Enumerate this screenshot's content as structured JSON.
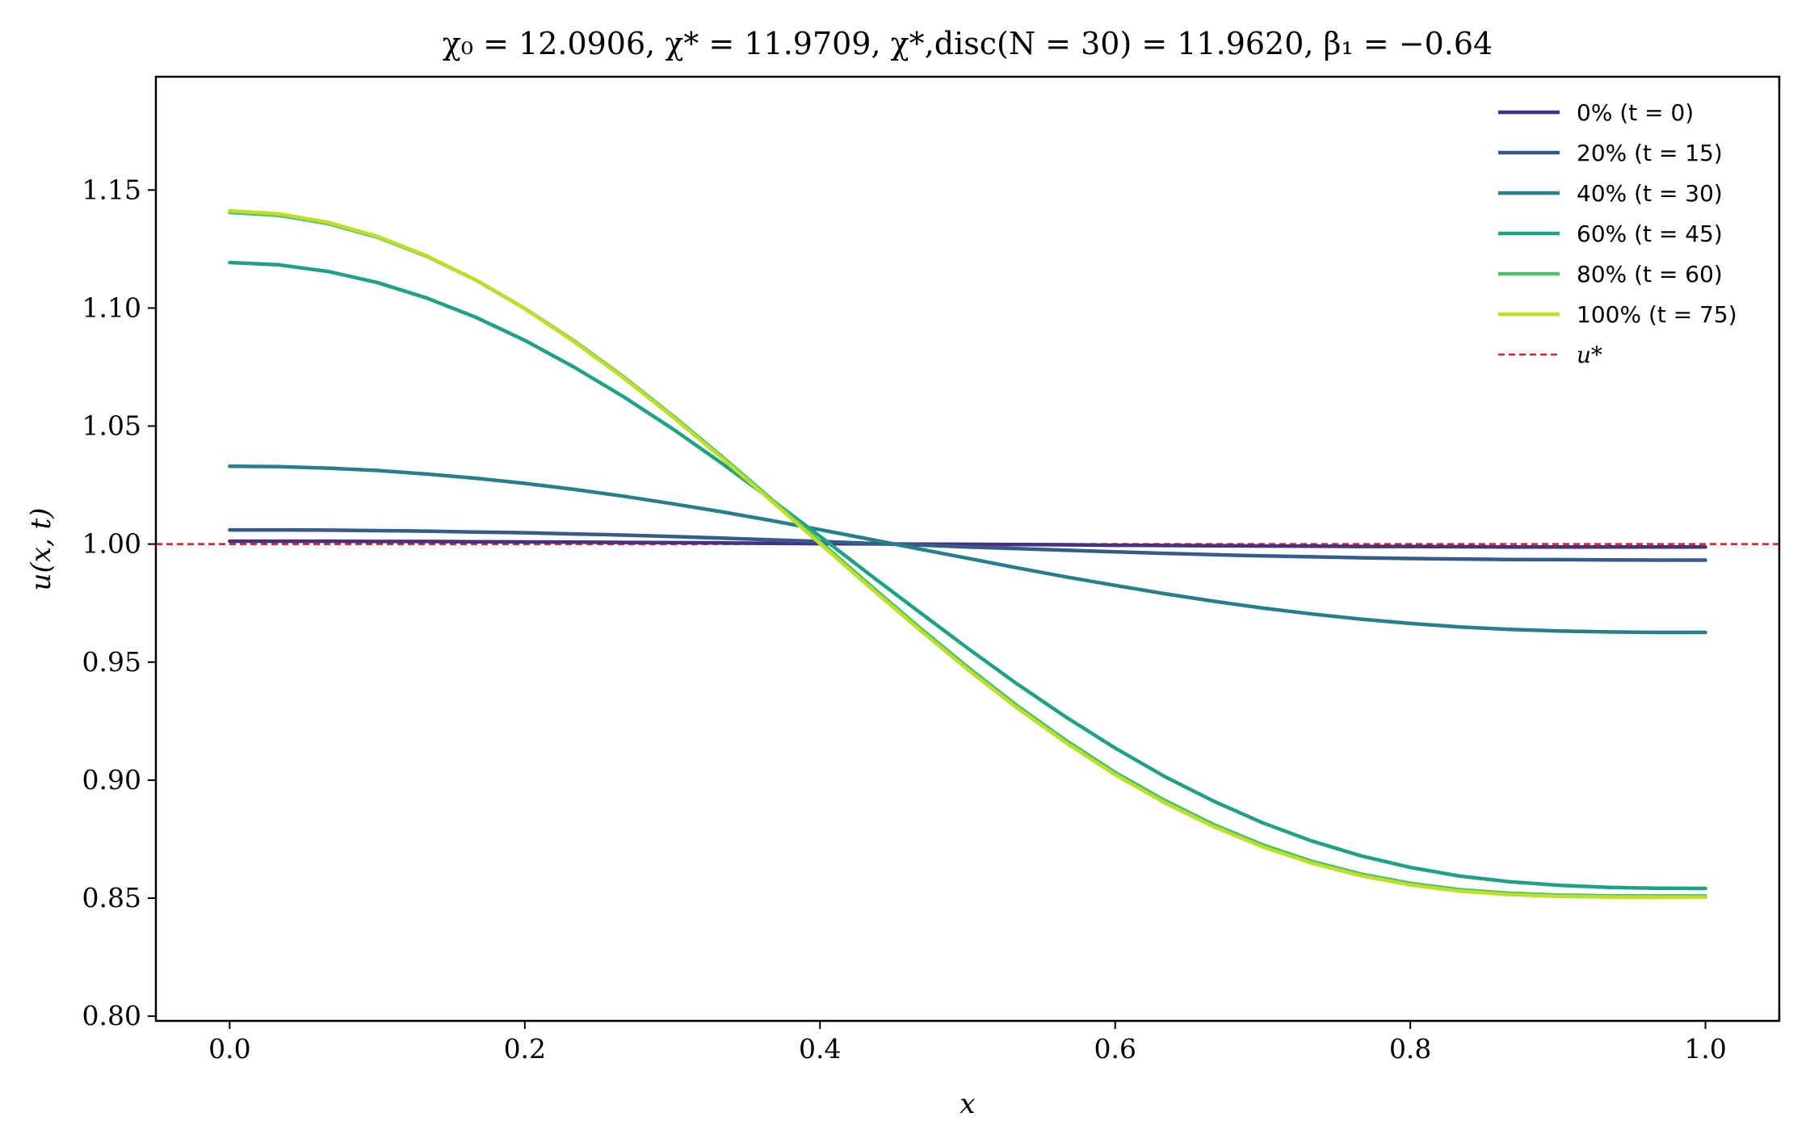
{
  "chart_data": {
    "type": "line",
    "title": "χ₀ = 12.0906,  χ* = 11.9709,  χ*,disc(N = 30) = 11.9620,  β₁ = −0.64",
    "xlabel": "x",
    "ylabel": "u(x, t)",
    "xlim": [
      -0.05,
      1.05
    ],
    "ylim": [
      0.798,
      1.198
    ],
    "xticks": [
      0.0,
      0.2,
      0.4,
      0.6,
      0.8,
      1.0
    ],
    "xtick_labels": [
      "0.0",
      "0.2",
      "0.4",
      "0.6",
      "0.8",
      "1.0"
    ],
    "yticks": [
      0.8,
      0.85,
      0.9,
      0.95,
      1.0,
      1.05,
      1.1,
      1.15
    ],
    "ytick_labels": [
      "0.80",
      "0.85",
      "0.90",
      "0.95",
      "1.00",
      "1.05",
      "1.10",
      "1.15"
    ],
    "grid": false,
    "legend_position": "top-right",
    "reference_line": {
      "name": "u*",
      "y": 1.0,
      "color": "#e31a1c",
      "style": "dashed"
    },
    "x": [
      0.0,
      0.0333,
      0.0667,
      0.1,
      0.1333,
      0.1667,
      0.2,
      0.2333,
      0.2667,
      0.3,
      0.3333,
      0.3667,
      0.4,
      0.4333,
      0.4667,
      0.5,
      0.5333,
      0.5667,
      0.6,
      0.6333,
      0.6667,
      0.7,
      0.7333,
      0.7667,
      0.8,
      0.8333,
      0.8667,
      0.9,
      0.9333,
      0.9667,
      1.0
    ],
    "series": [
      {
        "name": "0% (t = 0)",
        "color": "#46327e",
        "values": [
          1.0012,
          1.0012,
          1.0012,
          1.0011,
          1.0011,
          1.001,
          1.0009,
          1.0008,
          1.0007,
          1.0006,
          1.0005,
          1.0003,
          1.0002,
          1.0001,
          1.0,
          0.9999,
          0.9998,
          0.9997,
          0.9995,
          0.9994,
          0.9993,
          0.9992,
          0.9991,
          0.999,
          0.999,
          0.9989,
          0.9988,
          0.9988,
          0.9988,
          0.9988,
          0.9988
        ]
      },
      {
        "name": "20% (t = 15)",
        "color": "#365c8d",
        "values": [
          1.006,
          1.006,
          1.0059,
          1.0057,
          1.0055,
          1.0051,
          1.0048,
          1.0043,
          1.0038,
          1.0032,
          1.0025,
          1.0018,
          1.0011,
          1.0003,
          0.9996,
          0.9988,
          0.9981,
          0.9974,
          0.9967,
          0.9961,
          0.9955,
          0.995,
          0.9946,
          0.9942,
          0.9939,
          0.9937,
          0.9935,
          0.9934,
          0.9933,
          0.9932,
          0.9932
        ]
      },
      {
        "name": "40% (t = 30)",
        "color": "#277f8e",
        "values": [
          1.033,
          1.0328,
          1.0322,
          1.0312,
          1.0297,
          1.0279,
          1.0257,
          1.0232,
          1.0203,
          1.0171,
          1.0137,
          1.01,
          1.0061,
          1.0021,
          0.998,
          0.994,
          0.99,
          0.9861,
          0.9825,
          0.979,
          0.9758,
          0.9729,
          0.9704,
          0.9682,
          0.9664,
          0.9649,
          0.9639,
          0.9632,
          0.9628,
          0.9626,
          0.9626
        ]
      },
      {
        "name": "60% (t = 45)",
        "color": "#1fa187",
        "values": [
          1.1193,
          1.1183,
          1.1155,
          1.1108,
          1.1043,
          1.0961,
          1.0863,
          1.075,
          1.0625,
          1.0489,
          1.0343,
          1.019,
          1.0033,
          0.9873,
          0.9715,
          0.9559,
          0.9409,
          0.9267,
          0.9136,
          0.9016,
          0.8911,
          0.8819,
          0.8742,
          0.8679,
          0.863,
          0.8594,
          0.857,
          0.8555,
          0.8546,
          0.8542,
          0.8541
        ]
      },
      {
        "name": "80% (t = 60)",
        "color": "#4ac16d",
        "values": [
          1.1405,
          1.1393,
          1.1358,
          1.13,
          1.122,
          1.1119,
          1.0998,
          1.0861,
          1.0709,
          1.0545,
          1.0372,
          1.0192,
          1.001,
          0.9829,
          0.965,
          0.9479,
          0.9317,
          0.9168,
          0.9033,
          0.8915,
          0.8812,
          0.8726,
          0.8656,
          0.8602,
          0.8563,
          0.8536,
          0.8521,
          0.8513,
          0.851,
          0.8509,
          0.8509
        ]
      },
      {
        "name": "100% (t = 75)",
        "color": "#bddf26",
        "values": [
          1.1412,
          1.1399,
          1.1363,
          1.1304,
          1.1222,
          1.1119,
          1.0997,
          1.0858,
          1.0705,
          1.054,
          1.0366,
          1.0185,
          1.0002,
          0.982,
          0.9641,
          0.9469,
          0.9307,
          0.9158,
          0.9023,
          0.8905,
          0.8803,
          0.8717,
          0.8648,
          0.8595,
          0.8556,
          0.853,
          0.8515,
          0.8508,
          0.8505,
          0.8504,
          0.8504
        ]
      }
    ],
    "legend_extra": "u*"
  }
}
